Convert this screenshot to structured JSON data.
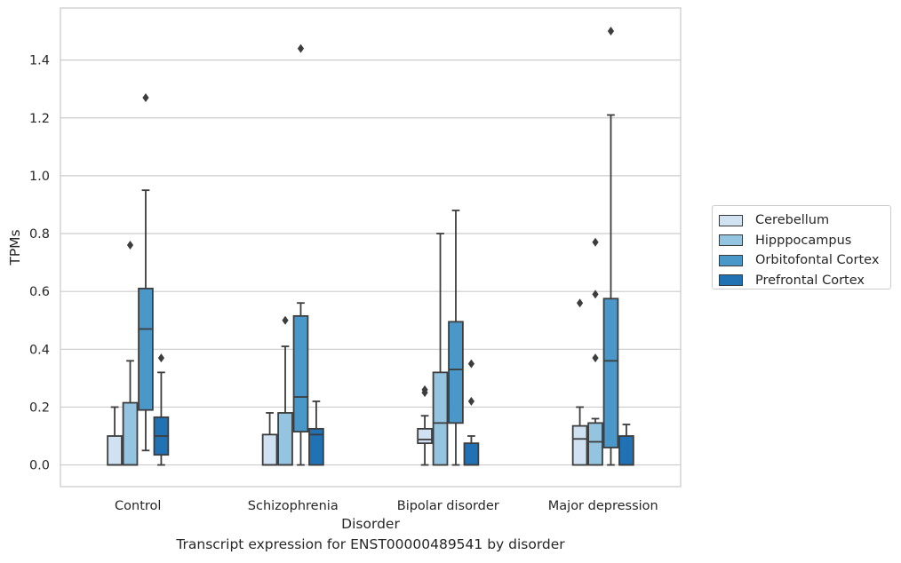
{
  "chart_data": {
    "type": "box",
    "title": "Transcript expression for ENST00000489541 by disorder",
    "xlabel": "Disorder",
    "ylabel": "TPMs",
    "ylim": [
      -0.075,
      1.58
    ],
    "yticks": [
      "0.0",
      "0.2",
      "0.4",
      "0.6",
      "0.8",
      "1.0",
      "1.2",
      "1.4"
    ],
    "categories": [
      "Control",
      "Schizophrenia",
      "Bipolar disorder",
      "Major depression"
    ],
    "grid": true,
    "legend_position": "right",
    "series": [
      {
        "name": "Cerebellum",
        "color": "#d0e1f2",
        "boxes": [
          {
            "min": 0,
            "q1": 0,
            "median": 0,
            "q3": 0.1,
            "max": 0.2,
            "outliers": []
          },
          {
            "min": 0,
            "q1": 0,
            "median": 0,
            "q3": 0.105,
            "max": 0.18,
            "outliers": []
          },
          {
            "min": 0,
            "q1": 0.075,
            "median": 0.088,
            "q3": 0.125,
            "max": 0.17,
            "outliers": [
              0.25,
              0.26
            ]
          },
          {
            "min": 0,
            "q1": 0,
            "median": 0.09,
            "q3": 0.135,
            "max": 0.2,
            "outliers": [
              0.56
            ]
          }
        ]
      },
      {
        "name": "Hipppocampus",
        "color": "#94c4df",
        "boxes": [
          {
            "min": 0,
            "q1": 0,
            "median": 0,
            "q3": 0.215,
            "max": 0.36,
            "outliers": [
              0.76
            ]
          },
          {
            "min": 0,
            "q1": 0,
            "median": 0,
            "q3": 0.18,
            "max": 0.41,
            "outliers": [
              0.5
            ]
          },
          {
            "min": 0,
            "q1": 0,
            "median": 0.145,
            "q3": 0.32,
            "max": 0.8,
            "outliers": []
          },
          {
            "min": 0,
            "q1": 0,
            "median": 0.08,
            "q3": 0.145,
            "max": 0.16,
            "outliers": [
              0.37,
              0.59,
              0.77
            ]
          }
        ]
      },
      {
        "name": "Orbitofontal Cortex",
        "color": "#4a98c9",
        "boxes": [
          {
            "min": 0.05,
            "q1": 0.19,
            "median": 0.47,
            "q3": 0.61,
            "max": 0.95,
            "outliers": [
              1.27
            ]
          },
          {
            "min": 0,
            "q1": 0.115,
            "median": 0.235,
            "q3": 0.515,
            "max": 0.56,
            "outliers": [
              1.44
            ]
          },
          {
            "min": 0,
            "q1": 0.145,
            "median": 0.33,
            "q3": 0.495,
            "max": 0.88,
            "outliers": []
          },
          {
            "min": 0,
            "q1": 0.06,
            "median": 0.36,
            "q3": 0.575,
            "max": 1.21,
            "outliers": [
              1.5
            ]
          }
        ]
      },
      {
        "name": "Prefrontal Cortex",
        "color": "#2171b5",
        "boxes": [
          {
            "min": 0,
            "q1": 0.035,
            "median": 0.1,
            "q3": 0.165,
            "max": 0.32,
            "outliers": [
              0.37
            ]
          },
          {
            "min": 0,
            "q1": 0,
            "median": 0.105,
            "q3": 0.125,
            "max": 0.22,
            "outliers": []
          },
          {
            "min": 0,
            "q1": 0,
            "median": 0,
            "q3": 0.075,
            "max": 0.1,
            "outliers": [
              0.22,
              0.35
            ]
          },
          {
            "min": 0,
            "q1": 0,
            "median": 0,
            "q3": 0.1,
            "max": 0.14,
            "outliers": []
          }
        ]
      }
    ]
  }
}
